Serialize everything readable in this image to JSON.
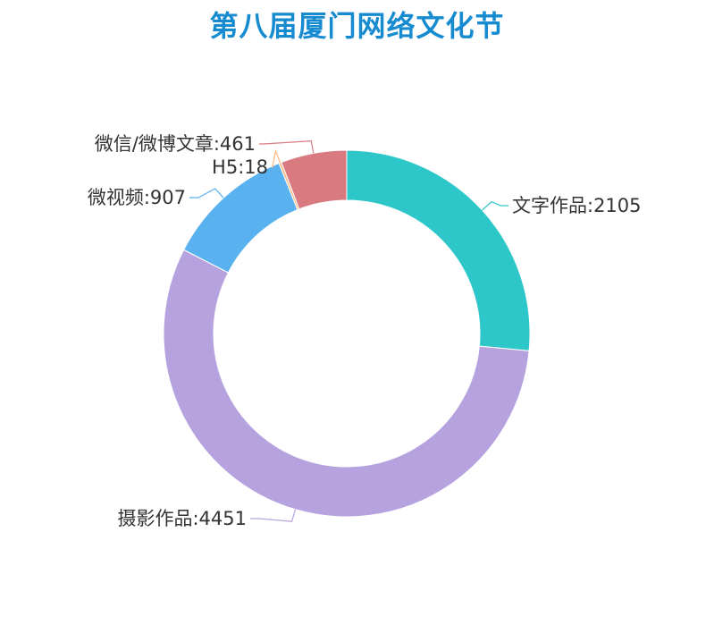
{
  "chart_data": {
    "type": "pie",
    "variant": "donut",
    "title": "第八届厦门网络文化节",
    "start": "top, clockwise",
    "slices": [
      {
        "label": "文字作品",
        "value": 2105,
        "color": "#2ec7c9",
        "text": "文字作品:2105"
      },
      {
        "label": "摄影作品",
        "value": 4451,
        "color": "#b6a2de",
        "text": "摄影作品:4451"
      },
      {
        "label": "微视频",
        "value": 907,
        "color": "#5ab1ef",
        "text": "微视频:907"
      },
      {
        "label": "H5",
        "value": 18,
        "color": "#ffb980",
        "text": "H5:18"
      },
      {
        "label": "微信/微博文章",
        "value": 461,
        "color": "#d87a80",
        "text": "微信/微博文章:461"
      }
    ]
  }
}
